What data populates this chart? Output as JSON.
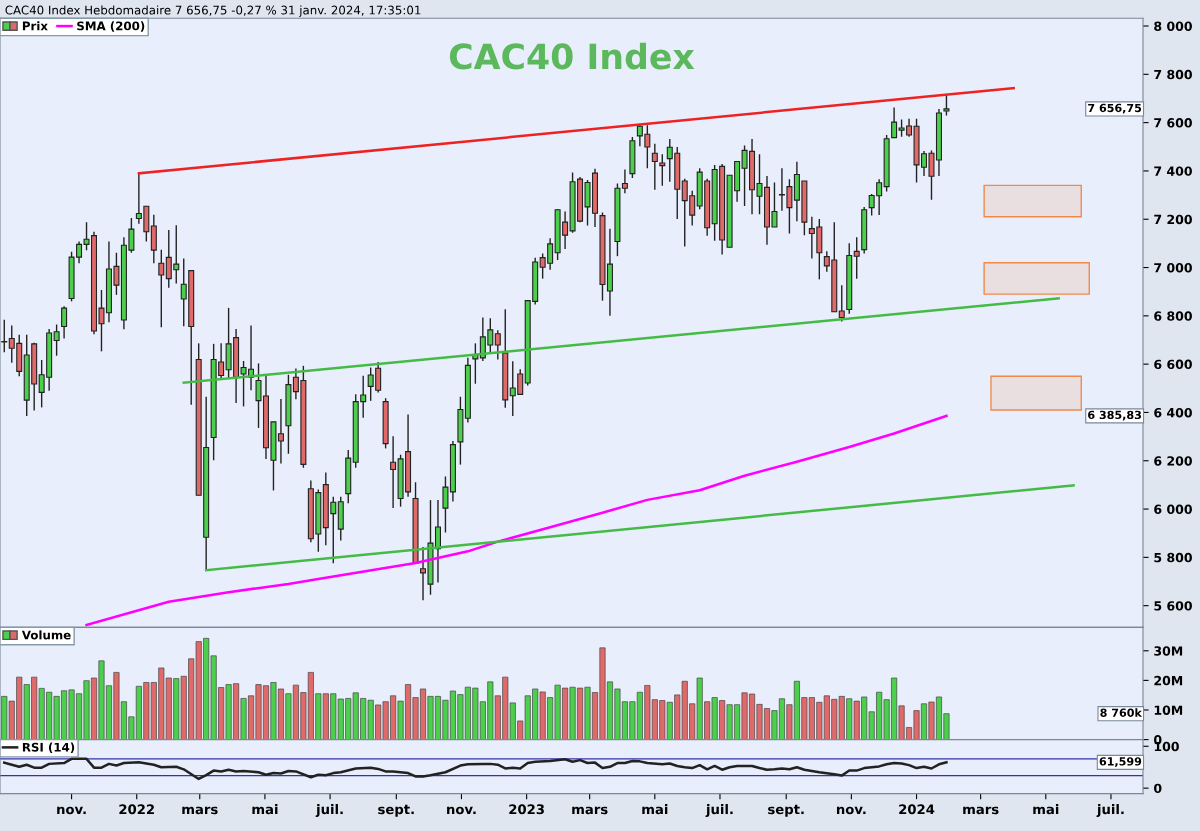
{
  "chart_data": [
    {
      "type": "candlestick",
      "title": "CAC40 Index",
      "subtitle": "CAC40 Index Hebdomadaire 7 656,75 -0,27 % 31 janv. 2024, 17:35:01",
      "x": [
        "2021-08-30",
        "2021-09-06",
        "2021-09-13",
        "2021-09-20",
        "2021-09-27",
        "2021-10-04",
        "2021-10-11",
        "2021-10-18",
        "2021-10-25",
        "2021-11-01",
        "2021-11-08",
        "2021-11-15",
        "2021-11-22",
        "2021-11-29",
        "2021-12-06",
        "2021-12-13",
        "2021-12-20",
        "2021-12-27",
        "2022-01-03",
        "2022-01-10",
        "2022-01-17",
        "2022-01-24",
        "2022-01-31",
        "2022-02-07",
        "2022-02-14",
        "2022-02-21",
        "2022-02-28",
        "2022-03-07",
        "2022-03-14",
        "2022-03-21",
        "2022-03-28",
        "2022-04-04",
        "2022-04-11",
        "2022-04-18",
        "2022-04-25",
        "2022-05-02",
        "2022-05-09",
        "2022-05-16",
        "2022-05-23",
        "2022-05-30",
        "2022-06-06",
        "2022-06-13",
        "2022-06-20",
        "2022-06-27",
        "2022-07-04",
        "2022-07-11",
        "2022-07-18",
        "2022-07-25",
        "2022-08-01",
        "2022-08-08",
        "2022-08-15",
        "2022-08-22",
        "2022-08-29",
        "2022-09-05",
        "2022-09-12",
        "2022-09-19",
        "2022-09-26",
        "2022-10-03",
        "2022-10-10",
        "2022-10-17",
        "2022-10-24",
        "2022-10-31",
        "2022-11-07",
        "2022-11-14",
        "2022-11-21",
        "2022-11-28",
        "2022-12-05",
        "2022-12-12",
        "2022-12-19",
        "2022-12-26",
        "2023-01-02",
        "2023-01-09",
        "2023-01-16",
        "2023-01-23",
        "2023-01-30",
        "2023-02-06",
        "2023-02-13",
        "2023-02-20",
        "2023-02-27",
        "2023-03-06",
        "2023-03-13",
        "2023-03-20",
        "2023-03-27",
        "2023-04-03",
        "2023-04-10",
        "2023-04-17",
        "2023-04-24",
        "2023-05-01",
        "2023-05-08",
        "2023-05-15",
        "2023-05-22",
        "2023-05-29",
        "2023-06-05",
        "2023-06-12",
        "2023-06-19",
        "2023-06-26",
        "2023-07-03",
        "2023-07-10",
        "2023-07-17",
        "2023-07-24",
        "2023-07-31",
        "2023-08-07",
        "2023-08-14",
        "2023-08-21",
        "2023-08-28",
        "2023-09-04",
        "2023-09-11",
        "2023-09-18",
        "2023-09-25",
        "2023-10-02",
        "2023-10-09",
        "2023-10-16",
        "2023-10-23",
        "2023-10-30",
        "2023-11-06",
        "2023-11-13",
        "2023-11-20",
        "2023-11-27",
        "2023-12-04",
        "2023-12-11",
        "2023-12-18",
        "2023-12-25",
        "2024-01-01",
        "2024-01-08",
        "2024-01-15",
        "2024-01-22",
        "2024-01-29"
      ],
      "series": [
        {
          "name": "Prix",
          "type": "candlestick",
          "ohlc": [
            [
              6692,
              6784,
              6649,
              6692
            ],
            [
              6706,
              6760,
              6606,
              6666
            ],
            [
              6686,
              6722,
              6550,
              6570
            ],
            [
              6451,
              6722,
              6385,
              6638
            ],
            [
              6684,
              6689,
              6408,
              6518
            ],
            [
              6483,
              6617,
              6421,
              6556
            ],
            [
              6546,
              6746,
              6490,
              6729
            ],
            [
              6698,
              6764,
              6635,
              6734
            ],
            [
              6756,
              6840,
              6706,
              6832
            ],
            [
              6872,
              7065,
              6860,
              7043
            ],
            [
              7043,
              7108,
              7018,
              7096
            ],
            [
              7096,
              7188,
              7072,
              7117
            ],
            [
              7132,
              7148,
              6724,
              6737
            ],
            [
              6832,
              6907,
              6653,
              6767
            ],
            [
              6813,
              7108,
              6773,
              6994
            ],
            [
              7005,
              7061,
              6887,
              6927
            ],
            [
              6783,
              7125,
              6744,
              7092
            ],
            [
              7072,
              7205,
              7061,
              7159
            ],
            [
              7203,
              7390,
              7181,
              7224
            ],
            [
              7254,
              7254,
              7108,
              7148
            ],
            [
              7172,
              7219,
              7018,
              7072
            ],
            [
              7018,
              7074,
              6753,
              6969
            ],
            [
              7042,
              7155,
              6916,
              6954
            ],
            [
              6991,
              7175,
              6934,
              7014
            ],
            [
              6870,
              7037,
              6757,
              6931
            ],
            [
              6987,
              6987,
              6432,
              6756
            ],
            [
              6619,
              6686,
              6057,
              6057
            ],
            [
              5883,
              6465,
              5747,
              6255
            ],
            [
              6296,
              6684,
              6202,
              6619
            ],
            [
              6609,
              6686,
              6539,
              6553
            ],
            [
              6577,
              6833,
              6539,
              6684
            ],
            [
              6710,
              6746,
              6439,
              6546
            ],
            [
              6559,
              6613,
              6425,
              6586
            ],
            [
              6546,
              6760,
              6492,
              6579
            ],
            [
              6449,
              6603,
              6336,
              6532
            ],
            [
              6468,
              6556,
              6207,
              6254
            ],
            [
              6202,
              6361,
              6077,
              6361
            ],
            [
              6312,
              6456,
              6189,
              6282
            ],
            [
              6345,
              6556,
              6229,
              6515
            ],
            [
              6546,
              6582,
              6455,
              6486
            ],
            [
              6532,
              6593,
              6171,
              6185
            ],
            [
              6084,
              6118,
              5863,
              5877
            ],
            [
              5897,
              6081,
              5823,
              6068
            ],
            [
              6101,
              6151,
              5850,
              5923
            ],
            [
              5981,
              6051,
              5776,
              6028
            ],
            [
              5917,
              6051,
              5870,
              6030
            ],
            [
              6064,
              6245,
              6024,
              6211
            ],
            [
              6194,
              6475,
              6171,
              6445
            ],
            [
              6445,
              6552,
              6378,
              6472
            ],
            [
              6508,
              6586,
              6448,
              6555
            ],
            [
              6583,
              6609,
              6483,
              6492
            ],
            [
              6445,
              6459,
              6251,
              6271
            ],
            [
              6194,
              6301,
              6004,
              6164
            ],
            [
              6044,
              6225,
              6010,
              6208
            ],
            [
              6238,
              6392,
              6051,
              6071
            ],
            [
              6044,
              6111,
              5776,
              5776
            ],
            [
              5753,
              5843,
              5622,
              5736
            ],
            [
              5689,
              6037,
              5645,
              5859
            ],
            [
              5836,
              6037,
              5696,
              5926
            ],
            [
              6004,
              6135,
              5903,
              6091
            ],
            [
              6071,
              6282,
              6031,
              6267
            ],
            [
              6278,
              6465,
              6184,
              6412
            ],
            [
              6376,
              6626,
              6358,
              6595
            ],
            [
              6622,
              6686,
              6519,
              6639
            ],
            [
              6626,
              6793,
              6613,
              6713
            ],
            [
              6679,
              6790,
              6646,
              6742
            ],
            [
              6726,
              6740,
              6619,
              6679
            ],
            [
              6646,
              6827,
              6419,
              6452
            ],
            [
              6469,
              6612,
              6385,
              6501
            ],
            [
              6559,
              6579,
              6472,
              6475
            ],
            [
              6522,
              6863,
              6512,
              6863
            ],
            [
              6860,
              7041,
              6847,
              7023
            ],
            [
              7041,
              7058,
              6954,
              7001
            ],
            [
              7018,
              7121,
              6991,
              7098
            ],
            [
              7061,
              7241,
              7031,
              7239
            ],
            [
              7188,
              7232,
              7077,
              7134
            ],
            [
              7152,
              7393,
              7144,
              7355
            ],
            [
              7366,
              7375,
              7188,
              7192
            ],
            [
              7251,
              7362,
              7174,
              7352
            ],
            [
              7391,
              7409,
              7168,
              7225
            ],
            [
              7215,
              7228,
              6863,
              6930
            ],
            [
              6903,
              7161,
              6800,
              7014
            ],
            [
              7108,
              7348,
              7047,
              7328
            ],
            [
              7348,
              7406,
              7308,
              7328
            ],
            [
              7389,
              7540,
              7371,
              7525
            ],
            [
              7545,
              7593,
              7502,
              7585
            ],
            [
              7552,
              7589,
              7411,
              7499
            ],
            [
              7473,
              7513,
              7322,
              7439
            ],
            [
              7433,
              7469,
              7339,
              7422
            ],
            [
              7451,
              7532,
              7355,
              7498
            ],
            [
              7473,
              7499,
              7201,
              7324
            ],
            [
              7358,
              7368,
              7087,
              7277
            ],
            [
              7297,
              7318,
              7174,
              7217
            ],
            [
              7255,
              7411,
              7241,
              7395
            ],
            [
              7358,
              7368,
              7132,
              7165
            ],
            [
              7181,
              7425,
              7111,
              7406
            ],
            [
              7419,
              7429,
              7054,
              7114
            ],
            [
              7084,
              7382,
              7084,
              7382
            ],
            [
              7318,
              7439,
              7272,
              7439
            ],
            [
              7411,
              7505,
              7255,
              7485
            ],
            [
              7481,
              7532,
              7221,
              7322
            ],
            [
              7295,
              7469,
              7221,
              7348
            ],
            [
              7332,
              7379,
              7094,
              7168
            ],
            [
              7168,
              7352,
              7168,
              7232
            ],
            [
              7301,
              7411,
              7235,
              7301
            ],
            [
              7335,
              7366,
              7141,
              7248
            ],
            [
              7279,
              7438,
              7192,
              7385
            ],
            [
              7358,
              7358,
              7134,
              7188
            ],
            [
              7161,
              7210,
              7037,
              7141
            ],
            [
              7168,
              7201,
              6951,
              7061
            ],
            [
              7045,
              7067,
              6983,
              7007
            ],
            [
              7031,
              7188,
              6817,
              6817
            ],
            [
              6820,
              6927,
              6777,
              6793
            ],
            [
              6826,
              7101,
              6809,
              7050
            ],
            [
              7067,
              7125,
              6954,
              7047
            ],
            [
              7074,
              7251,
              7058,
              7239
            ],
            [
              7248,
              7304,
              7215,
              7298
            ],
            [
              7297,
              7366,
              7217,
              7351
            ],
            [
              7335,
              7549,
              7315,
              7533
            ],
            [
              7538,
              7663,
              7538,
              7602
            ],
            [
              7569,
              7613,
              7542,
              7578
            ],
            [
              7586,
              7616,
              7542,
              7549
            ],
            [
              7585,
              7616,
              7352,
              7425
            ],
            [
              7415,
              7482,
              7379,
              7471
            ],
            [
              7473,
              7485,
              7281,
              7378
            ],
            [
              7445,
              7656,
              7379,
              7640
            ],
            [
              7648,
              7714,
              7629,
              7656.75
            ]
          ],
          "colors": [
            "#4ccf4c",
            "#e06a6a",
            "#e06a6a",
            "#4ccf4c",
            "#e06a6a",
            "#4ccf4c",
            "#4ccf4c",
            "#4ccf4c",
            "#4ccf4c",
            "#4ccf4c",
            "#4ccf4c",
            "#4ccf4c",
            "#e06a6a",
            "#e06a6a",
            "#4ccf4c",
            "#e06a6a",
            "#4ccf4c",
            "#4ccf4c",
            "#4ccf4c",
            "#e06a6a",
            "#e06a6a",
            "#e06a6a",
            "#e06a6a",
            "#4ccf4c",
            "#4ccf4c",
            "#e06a6a",
            "#e06a6a",
            "#4ccf4c",
            "#4ccf4c",
            "#e06a6a",
            "#4ccf4c",
            "#e06a6a",
            "#4ccf4c",
            "#4ccf4c",
            "#4ccf4c",
            "#e06a6a",
            "#4ccf4c",
            "#e06a6a",
            "#4ccf4c",
            "#e06a6a",
            "#e06a6a",
            "#e06a6a",
            "#4ccf4c",
            "#e06a6a",
            "#4ccf4c",
            "#4ccf4c",
            "#4ccf4c",
            "#4ccf4c",
            "#4ccf4c",
            "#4ccf4c",
            "#e06a6a",
            "#e06a6a",
            "#e06a6a",
            "#4ccf4c",
            "#e06a6a",
            "#e06a6a",
            "#e06a6a",
            "#4ccf4c",
            "#4ccf4c",
            "#4ccf4c",
            "#4ccf4c",
            "#4ccf4c",
            "#4ccf4c",
            "#4ccf4c",
            "#4ccf4c",
            "#4ccf4c",
            "#e06a6a",
            "#e06a6a",
            "#4ccf4c",
            "#e06a6a",
            "#4ccf4c",
            "#4ccf4c",
            "#e06a6a",
            "#4ccf4c",
            "#4ccf4c",
            "#e06a6a",
            "#4ccf4c",
            "#e06a6a",
            "#4ccf4c",
            "#e06a6a",
            "#e06a6a",
            "#4ccf4c",
            "#4ccf4c",
            "#e06a6a",
            "#4ccf4c",
            "#4ccf4c",
            "#e06a6a",
            "#e06a6a",
            "#e06a6a",
            "#4ccf4c",
            "#e06a6a",
            "#e06a6a",
            "#e06a6a",
            "#4ccf4c",
            "#e06a6a",
            "#4ccf4c",
            "#e06a6a",
            "#4ccf4c",
            "#4ccf4c",
            "#4ccf4c",
            "#e06a6a",
            "#4ccf4c",
            "#e06a6a",
            "#4ccf4c",
            "#4ccf4c",
            "#e06a6a",
            "#4ccf4c",
            "#e06a6a",
            "#e06a6a",
            "#e06a6a",
            "#e06a6a",
            "#e06a6a",
            "#e06a6a",
            "#4ccf4c",
            "#e06a6a",
            "#4ccf4c",
            "#4ccf4c",
            "#4ccf4c",
            "#4ccf4c",
            "#4ccf4c",
            "#4ccf4c",
            "#e06a6a",
            "#e06a6a",
            "#4ccf4c",
            "#e06a6a",
            "#4ccf4c",
            "#4ccf4c"
          ]
        },
        {
          "name": "SMA (200)",
          "type": "line",
          "color": "#ff00ff",
          "x": [
            "2021-11-15",
            "2022-01-31",
            "2022-03-28",
            "2022-05-23",
            "2022-06-27",
            "2022-09-19",
            "2022-11-07",
            "2022-12-05",
            "2023-01-23",
            "2023-03-13",
            "2023-04-24",
            "2023-06-12",
            "2023-07-24",
            "2023-09-11",
            "2023-10-30",
            "2023-12-11",
            "2024-01-29"
          ],
          "values": [
            5520,
            5616,
            5656,
            5690,
            5716,
            5777,
            5825,
            5865,
            5925,
            5985,
            6038,
            6078,
            6138,
            6196,
            6257,
            6313,
            6385.83
          ]
        },
        {
          "type": "line",
          "color": "#ee2222",
          "x": [
            "2022-01-03",
            "2024-04-01"
          ],
          "values": [
            7390,
            7743
          ]
        },
        {
          "type": "line",
          "color": "#44bb44",
          "x": [
            "2022-02-14",
            "2024-05-13"
          ],
          "values": [
            6523,
            6872
          ]
        },
        {
          "type": "line",
          "color": "#44bb44",
          "x": [
            "2022-03-07",
            "2024-05-27"
          ],
          "values": [
            5747,
            6098
          ]
        }
      ],
      "bands": [
        {
          "axis": "y",
          "from": 7210,
          "to": 7340,
          "color": "#f08a4b"
        },
        {
          "axis": "y",
          "from": 6890,
          "to": 7020,
          "color": "#f08a4b"
        },
        {
          "axis": "y",
          "from": 6410,
          "to": 6550,
          "color": "#f08a4b"
        }
      ],
      "annotations": [
        "7 656,75",
        "6 385,83"
      ],
      "xlim": [
        "2021-08-26",
        "2024-07-31"
      ],
      "ylim": [
        5510,
        8032
      ],
      "yticks": [
        {
          "value": 5600,
          "label": "5 600"
        },
        {
          "value": 5800,
          "label": "5 800"
        },
        {
          "value": 6000,
          "label": "6 000"
        },
        {
          "value": 6200,
          "label": "6 200"
        },
        {
          "value": 6400,
          "label": "6 400"
        },
        {
          "value": 6600,
          "label": "6 600"
        },
        {
          "value": 6800,
          "label": "6 800"
        },
        {
          "value": 7000,
          "label": "7 000"
        },
        {
          "value": 7200,
          "label": "7 200"
        },
        {
          "value": 7400,
          "label": "7 400"
        },
        {
          "value": 7600,
          "label": "7 600"
        },
        {
          "value": 7800,
          "label": "7 800"
        },
        {
          "value": 8000,
          "label": "8 000"
        }
      ],
      "legend": "top left",
      "tick_labels": "y"
    },
    {
      "type": "bar",
      "x": [
        "2021-08-30",
        "2021-09-06",
        "2021-09-13",
        "2021-09-20",
        "2021-09-27",
        "2021-10-04",
        "2021-10-11",
        "2021-10-18",
        "2021-10-25",
        "2021-11-01",
        "2021-11-08",
        "2021-11-15",
        "2021-11-22",
        "2021-11-29",
        "2021-12-06",
        "2021-12-13",
        "2021-12-20",
        "2021-12-27",
        "2022-01-03",
        "2022-01-10",
        "2022-01-17",
        "2022-01-24",
        "2022-01-31",
        "2022-02-07",
        "2022-02-14",
        "2022-02-21",
        "2022-02-28",
        "2022-03-07",
        "2022-03-14",
        "2022-03-21",
        "2022-03-28",
        "2022-04-04",
        "2022-04-11",
        "2022-04-18",
        "2022-04-25",
        "2022-05-02",
        "2022-05-09",
        "2022-05-16",
        "2022-05-23",
        "2022-05-30",
        "2022-06-06",
        "2022-06-13",
        "2022-06-20",
        "2022-06-27",
        "2022-07-04",
        "2022-07-11",
        "2022-07-18",
        "2022-07-25",
        "2022-08-01",
        "2022-08-08",
        "2022-08-15",
        "2022-08-22",
        "2022-08-29",
        "2022-09-05",
        "2022-09-12",
        "2022-09-19",
        "2022-09-26",
        "2022-10-03",
        "2022-10-10",
        "2022-10-17",
        "2022-10-24",
        "2022-10-31",
        "2022-11-07",
        "2022-11-14",
        "2022-11-21",
        "2022-11-28",
        "2022-12-05",
        "2022-12-12",
        "2022-12-19",
        "2022-12-26",
        "2023-01-02",
        "2023-01-09",
        "2023-01-16",
        "2023-01-23",
        "2023-01-30",
        "2023-02-06",
        "2023-02-13",
        "2023-02-20",
        "2023-02-27",
        "2023-03-06",
        "2023-03-13",
        "2023-03-20",
        "2023-03-27",
        "2023-04-03",
        "2023-04-10",
        "2023-04-17",
        "2023-04-24",
        "2023-05-01",
        "2023-05-08",
        "2023-05-15",
        "2023-05-22",
        "2023-05-29",
        "2023-06-05",
        "2023-06-12",
        "2023-06-19",
        "2023-06-26",
        "2023-07-03",
        "2023-07-10",
        "2023-07-17",
        "2023-07-24",
        "2023-07-31",
        "2023-08-07",
        "2023-08-14",
        "2023-08-21",
        "2023-08-28",
        "2023-09-04",
        "2023-09-11",
        "2023-09-18",
        "2023-09-25",
        "2023-10-02",
        "2023-10-09",
        "2023-10-16",
        "2023-10-23",
        "2023-10-30",
        "2023-11-06",
        "2023-11-13",
        "2023-11-20",
        "2023-11-27",
        "2023-12-04",
        "2023-12-11",
        "2023-12-18",
        "2023-12-25",
        "2024-01-01",
        "2024-01-08",
        "2024-01-15",
        "2024-01-22",
        "2024-01-29"
      ],
      "series": [
        {
          "name": "Volume",
          "values": [
            14.6,
            13.0,
            21.1,
            18.6,
            21.1,
            17.3,
            16.0,
            14.6,
            16.5,
            16.8,
            15.5,
            19.9,
            20.8,
            26.6,
            18.2,
            22.7,
            12.8,
            7.7,
            18.0,
            19.3,
            19.3,
            24.2,
            20.8,
            20.6,
            21.4,
            27.3,
            33.1,
            34.2,
            28.3,
            17.6,
            18.6,
            18.9,
            13.9,
            14.8,
            18.6,
            18.2,
            19.3,
            17.1,
            15.5,
            18.4,
            15.9,
            22.7,
            15.5,
            15.5,
            15.5,
            13.7,
            13.9,
            15.8,
            13.9,
            13.3,
            11.7,
            12.8,
            14.8,
            13.0,
            18.6,
            14.2,
            17.1,
            14.6,
            14.6,
            13.3,
            16.4,
            15.2,
            17.7,
            17.4,
            12.8,
            19.5,
            14.8,
            21.1,
            12.4,
            6.3,
            14.8,
            17.1,
            16.1,
            14.2,
            18.4,
            17.4,
            17.7,
            17.4,
            17.7,
            15.9,
            31.0,
            19.5,
            17.1,
            12.8,
            12.8,
            16.0,
            18.3,
            13.5,
            13.2,
            12.6,
            15.1,
            19.7,
            12.1,
            20.8,
            12.8,
            14.2,
            13.2,
            11.8,
            11.8,
            15.8,
            15.4,
            11.9,
            10.5,
            9.8,
            13.8,
            11.8,
            19.7,
            14.2,
            14.2,
            12.6,
            14.8,
            13.6,
            14.6,
            13.8,
            13.0,
            14.4,
            9.4,
            16.0,
            13.5,
            20.8,
            11.4,
            4.1,
            9.8,
            12.1,
            12.7,
            14.4,
            8.76
          ],
          "colors": [
            "#4ccf4c",
            "#e06a6a",
            "#e06a6a",
            "#4ccf4c",
            "#e06a6a",
            "#4ccf4c",
            "#4ccf4c",
            "#4ccf4c",
            "#4ccf4c",
            "#4ccf4c",
            "#4ccf4c",
            "#4ccf4c",
            "#e06a6a",
            "#4ccf4c",
            "#4ccf4c",
            "#e06a6a",
            "#4ccf4c",
            "#4ccf4c",
            "#4ccf4c",
            "#e06a6a",
            "#e06a6a",
            "#e06a6a",
            "#e06a6a",
            "#4ccf4c",
            "#e06a6a",
            "#e06a6a",
            "#e06a6a",
            "#4ccf4c",
            "#4ccf4c",
            "#e06a6a",
            "#4ccf4c",
            "#e06a6a",
            "#4ccf4c",
            "#e06a6a",
            "#e06a6a",
            "#e06a6a",
            "#4ccf4c",
            "#e06a6a",
            "#4ccf4c",
            "#e06a6a",
            "#e06a6a",
            "#e06a6a",
            "#4ccf4c",
            "#e06a6a",
            "#4ccf4c",
            "#4ccf4c",
            "#4ccf4c",
            "#4ccf4c",
            "#4ccf4c",
            "#4ccf4c",
            "#e06a6a",
            "#e06a6a",
            "#e06a6a",
            "#4ccf4c",
            "#e06a6a",
            "#e06a6a",
            "#e06a6a",
            "#4ccf4c",
            "#4ccf4c",
            "#4ccf4c",
            "#4ccf4c",
            "#4ccf4c",
            "#4ccf4c",
            "#4ccf4c",
            "#4ccf4c",
            "#4ccf4c",
            "#e06a6a",
            "#e06a6a",
            "#4ccf4c",
            "#e06a6a",
            "#4ccf4c",
            "#4ccf4c",
            "#e06a6a",
            "#4ccf4c",
            "#4ccf4c",
            "#e06a6a",
            "#4ccf4c",
            "#e06a6a",
            "#4ccf4c",
            "#e06a6a",
            "#e06a6a",
            "#4ccf4c",
            "#4ccf4c",
            "#4ccf4c",
            "#4ccf4c",
            "#4ccf4c",
            "#e06a6a",
            "#e06a6a",
            "#e06a6a",
            "#4ccf4c",
            "#e06a6a",
            "#e06a6a",
            "#e06a6a",
            "#4ccf4c",
            "#e06a6a",
            "#4ccf4c",
            "#e06a6a",
            "#4ccf4c",
            "#4ccf4c",
            "#e06a6a",
            "#e06a6a",
            "#e06a6a",
            "#e06a6a",
            "#4ccf4c",
            "#4ccf4c",
            "#e06a6a",
            "#4ccf4c",
            "#e06a6a",
            "#e06a6a",
            "#e06a6a",
            "#e06a6a",
            "#e06a6a",
            "#e06a6a",
            "#4ccf4c",
            "#e06a6a",
            "#4ccf4c",
            "#4ccf4c",
            "#4ccf4c",
            "#4ccf4c",
            "#4ccf4c",
            "#e06a6a",
            "#e06a6a",
            "#e06a6a",
            "#4ccf4c",
            "#e06a6a",
            "#4ccf4c",
            "#4ccf4c"
          ]
        }
      ],
      "annotations": [
        "8 760k"
      ],
      "xlim": [
        "2021-08-26",
        "2024-07-31"
      ],
      "ylim": [
        0,
        37.9
      ],
      "yticks": [
        0,
        {
          "value": 10,
          "label": "10M"
        },
        {
          "value": 20,
          "label": "20M"
        },
        {
          "value": 30,
          "label": "30M"
        }
      ],
      "legend": "top left",
      "tick_labels": "y"
    },
    {
      "type": "line",
      "series": [
        {
          "name": "RSI (14)",
          "color": "#222222",
          "x": [
            "2021-08-30",
            "2021-09-06",
            "2021-09-13",
            "2021-09-20",
            "2021-09-27",
            "2021-10-04",
            "2021-10-11",
            "2021-10-25",
            "2021-11-01",
            "2021-11-15",
            "2021-11-22",
            "2021-11-29",
            "2021-12-06",
            "2021-12-13",
            "2021-12-20",
            "2022-01-03",
            "2022-01-17",
            "2022-01-24",
            "2022-02-07",
            "2022-02-14",
            "2022-02-28",
            "2022-03-07",
            "2022-03-14",
            "2022-03-21",
            "2022-03-28",
            "2022-04-04",
            "2022-04-11",
            "2022-04-25",
            "2022-05-02",
            "2022-05-09",
            "2022-05-16",
            "2022-05-23",
            "2022-05-30",
            "2022-06-13",
            "2022-06-20",
            "2022-06-27",
            "2022-07-04",
            "2022-07-11",
            "2022-07-25",
            "2022-08-08",
            "2022-08-15",
            "2022-08-22",
            "2022-08-29",
            "2022-09-12",
            "2022-09-19",
            "2022-09-26",
            "2022-10-03",
            "2022-10-17",
            "2022-10-31",
            "2022-11-07",
            "2022-11-21",
            "2022-11-28",
            "2022-12-05",
            "2022-12-12",
            "2022-12-19",
            "2022-12-26",
            "2023-01-02",
            "2023-01-09",
            "2023-01-23",
            "2023-02-06",
            "2023-02-13",
            "2023-02-20",
            "2023-02-27",
            "2023-03-06",
            "2023-03-13",
            "2023-03-20",
            "2023-03-27",
            "2023-04-03",
            "2023-04-10",
            "2023-04-17",
            "2023-04-24",
            "2023-05-08",
            "2023-05-15",
            "2023-05-22",
            "2023-05-29",
            "2023-06-05",
            "2023-06-12",
            "2023-06-19",
            "2023-06-26",
            "2023-07-03",
            "2023-07-10",
            "2023-07-17",
            "2023-07-31",
            "2023-08-07",
            "2023-08-14",
            "2023-08-21",
            "2023-08-28",
            "2023-09-04",
            "2023-09-11",
            "2023-09-18",
            "2023-09-25",
            "2023-10-02",
            "2023-10-16",
            "2023-10-23",
            "2023-10-30",
            "2023-11-06",
            "2023-11-13",
            "2023-11-27",
            "2023-12-04",
            "2023-12-11",
            "2023-12-18",
            "2023-12-25",
            "2024-01-01",
            "2024-01-08",
            "2024-01-15",
            "2024-01-22",
            "2024-01-29"
          ],
          "values": [
            61,
            56,
            51,
            56,
            49,
            49,
            58,
            60,
            70,
            70,
            49,
            49,
            58,
            54,
            60,
            62,
            56,
            50,
            51,
            45,
            22,
            31,
            42,
            40,
            44,
            40,
            41,
            38,
            32,
            36,
            35,
            41,
            40,
            26,
            32,
            31,
            36,
            38,
            47,
            49,
            46,
            40,
            40,
            36,
            28,
            28,
            31,
            38,
            54,
            57,
            58,
            58,
            56,
            47,
            49,
            47,
            60,
            63,
            65,
            69,
            63,
            67,
            60,
            61,
            48,
            51,
            60,
            60,
            65,
            64,
            60,
            57,
            59,
            53,
            50,
            48,
            55,
            45,
            53,
            44,
            50,
            53,
            53,
            48,
            44,
            45,
            47,
            45,
            50,
            44,
            41,
            38,
            33,
            30,
            42,
            42,
            48,
            52,
            57,
            60,
            59,
            55,
            48,
            51,
            47,
            57,
            61.599
          ]
        }
      ],
      "ref_lines": [
        {
          "axis": "y",
          "value": 70,
          "color": "#3333aa"
        },
        {
          "axis": "y",
          "value": 30,
          "color": "#3333aa"
        }
      ],
      "annotations": [
        "61,599"
      ],
      "xlim": [
        "2021-08-26",
        "2024-07-31"
      ],
      "xticks": [
        {
          "value": "2021-11-01",
          "label": "nov."
        },
        {
          "value": "2022-01-01",
          "label": "2022"
        },
        {
          "value": "2022-03-01",
          "label": "mars"
        },
        {
          "value": "2022-05-01",
          "label": "mai"
        },
        {
          "value": "2022-07-01",
          "label": "juil."
        },
        {
          "value": "2022-09-01",
          "label": "sept."
        },
        {
          "value": "2022-11-01",
          "label": "nov."
        },
        {
          "value": "2023-01-01",
          "label": "2023"
        },
        {
          "value": "2023-03-01",
          "label": "mars"
        },
        {
          "value": "2023-05-01",
          "label": "mai"
        },
        {
          "value": "2023-07-01",
          "label": "juil."
        },
        {
          "value": "2023-09-01",
          "label": "sept."
        },
        {
          "value": "2023-11-01",
          "label": "nov."
        },
        {
          "value": "2024-01-01",
          "label": "2024"
        },
        {
          "value": "2024-03-01",
          "label": "mars"
        },
        {
          "value": "2024-05-01",
          "label": "mai"
        },
        {
          "value": "2024-07-01",
          "label": "juil."
        }
      ],
      "ylim": [
        -13,
        116
      ],
      "yticks": [
        0,
        100
      ],
      "legend": "top left"
    }
  ]
}
